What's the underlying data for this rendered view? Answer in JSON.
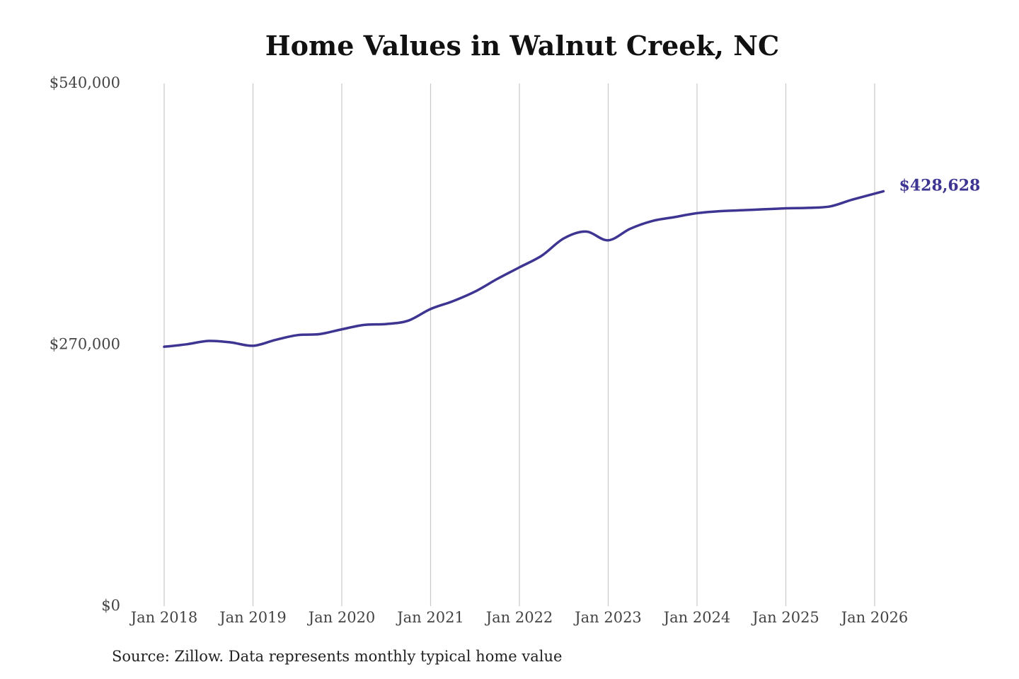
{
  "chart_data": {
    "type": "line",
    "title": "Home Values in Walnut Creek, NC",
    "source": "Source: Zillow. Data represents monthly typical home value",
    "xlabel": "",
    "ylabel": "",
    "ylim": [
      0,
      540000
    ],
    "y_ticks": [
      {
        "value": 0,
        "label": "$0"
      },
      {
        "value": 270000,
        "label": "$270,000"
      },
      {
        "value": 540000,
        "label": "$540,000"
      }
    ],
    "x_ticks": [
      "Jan 2018",
      "Jan 2019",
      "Jan 2020",
      "Jan 2021",
      "Jan 2022",
      "Jan 2023",
      "Jan 2024",
      "Jan 2025",
      "Jan 2026"
    ],
    "grid": "vertical",
    "line_color": "#3d3591",
    "end_label": "$428,628",
    "series": [
      {
        "values": [
          [
            2018.0,
            268000
          ],
          [
            2018.25,
            270500
          ],
          [
            2018.5,
            274000
          ],
          [
            2018.75,
            272500
          ],
          [
            2019.0,
            269000
          ],
          [
            2019.25,
            275000
          ],
          [
            2019.5,
            280000
          ],
          [
            2019.75,
            281000
          ],
          [
            2020.0,
            286000
          ],
          [
            2020.25,
            290500
          ],
          [
            2020.5,
            291500
          ],
          [
            2020.75,
            295000
          ],
          [
            2021.0,
            307000
          ],
          [
            2021.25,
            315000
          ],
          [
            2021.5,
            325000
          ],
          [
            2021.75,
            338000
          ],
          [
            2022.0,
            350000
          ],
          [
            2022.25,
            362000
          ],
          [
            2022.5,
            380000
          ],
          [
            2022.75,
            387000
          ],
          [
            2023.0,
            378000
          ],
          [
            2023.25,
            390000
          ],
          [
            2023.5,
            398000
          ],
          [
            2023.75,
            402000
          ],
          [
            2024.0,
            406000
          ],
          [
            2024.25,
            408000
          ],
          [
            2024.5,
            409000
          ],
          [
            2024.75,
            410000
          ],
          [
            2025.0,
            411000
          ],
          [
            2025.25,
            411500
          ],
          [
            2025.5,
            413000
          ],
          [
            2025.75,
            420000
          ],
          [
            2026.1,
            428628
          ]
        ]
      }
    ]
  }
}
